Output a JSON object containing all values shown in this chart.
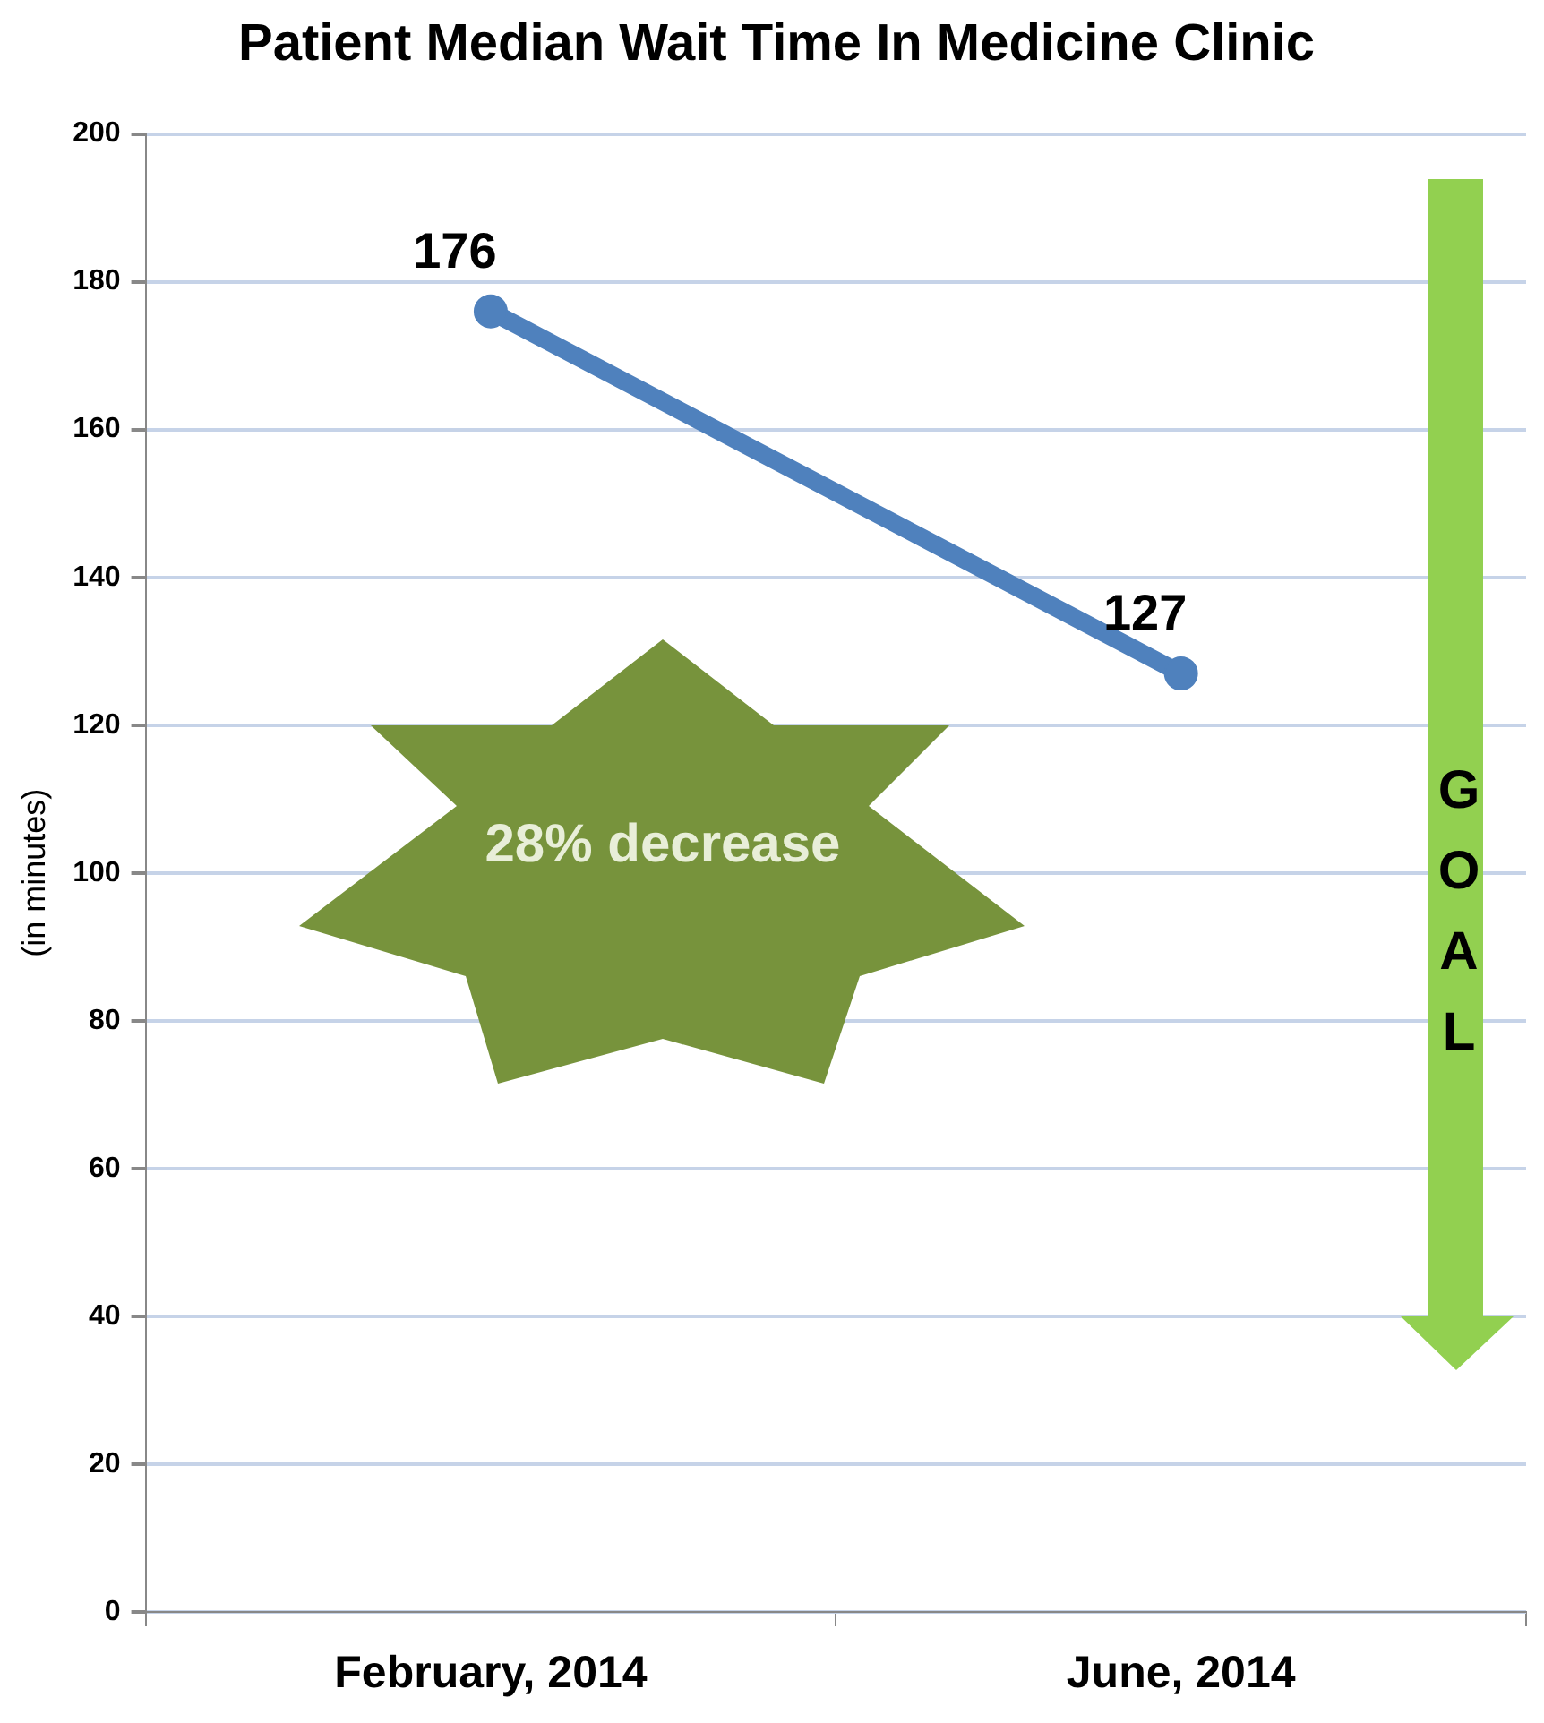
{
  "chart_data": {
    "type": "line",
    "title": "Patient Median Wait Time In Medicine Clinic",
    "ylabel": "(in minutes)",
    "categories": [
      "February, 2014",
      "June, 2014"
    ],
    "series": [
      {
        "color": "#4f81bd",
        "values": [
          176,
          127
        ]
      }
    ],
    "ylim": [
      0,
      200
    ],
    "yticks": [
      0,
      20,
      40,
      60,
      80,
      100,
      120,
      140,
      160,
      180,
      200
    ],
    "grid": "y",
    "legend": false,
    "marker": "circle",
    "data_labels": true,
    "annotations": [
      "28% decrease",
      "GOAL"
    ]
  }
}
